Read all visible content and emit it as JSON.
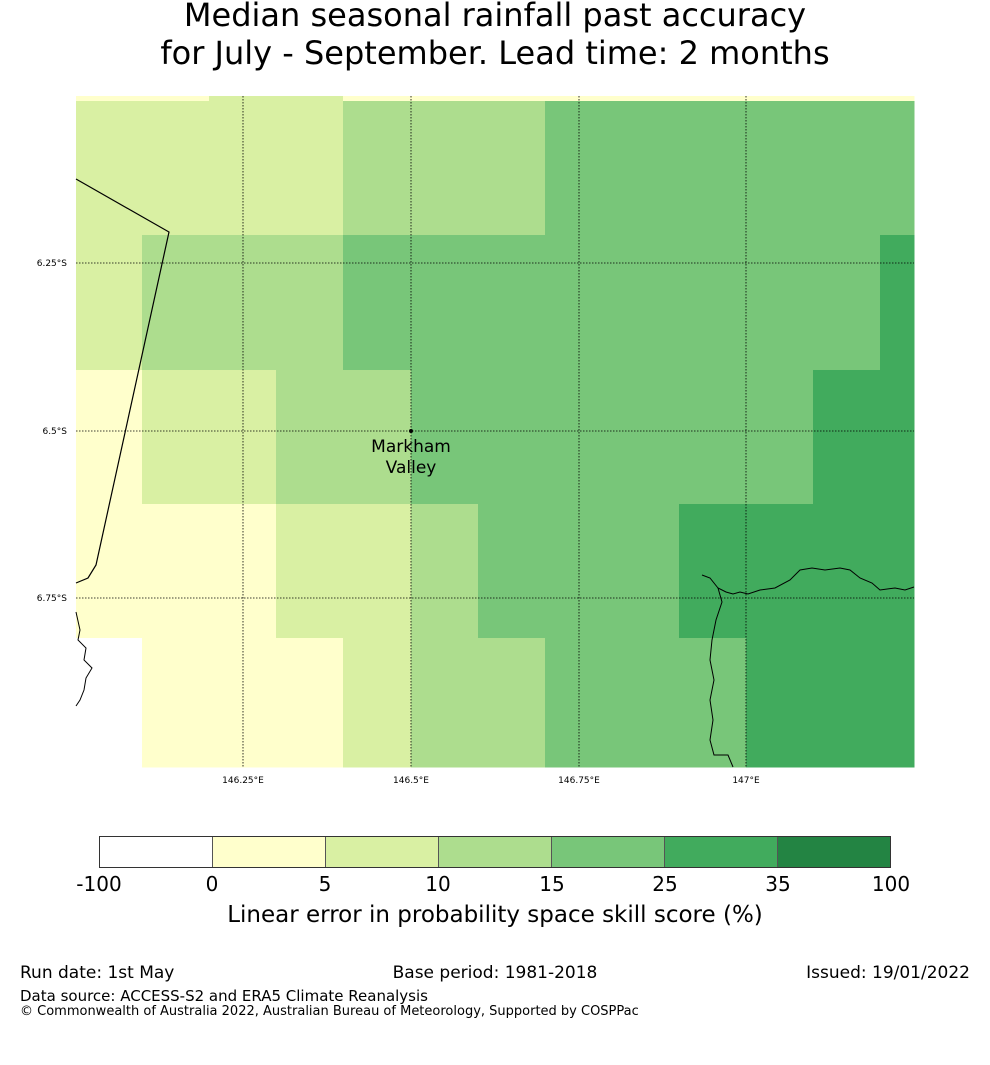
{
  "title_line1": "Median seasonal rainfall past accuracy",
  "title_line2": "for July - September. Lead time: 2 months",
  "map": {
    "latitude_labels": [
      "6.25°S",
      "6.5°S",
      "6.75°S"
    ],
    "longitude_labels": [
      "146.25°E",
      "146.5°E",
      "146.75°E",
      "147°E"
    ],
    "location": {
      "name_line1": "Markham",
      "name_line2": "Valley"
    },
    "grid": {
      "rows": [
        [
          "c1",
          "c1",
          "c1",
          "c1",
          "c1",
          "c1",
          "c1",
          "c1",
          "c1",
          "c1",
          "c1",
          "c1",
          "c1"
        ],
        [
          "c2",
          "c2",
          "c2",
          "c2",
          "c3",
          "c3",
          "c3",
          "c4",
          "c4",
          "c4",
          "c4",
          "c4",
          "c4"
        ],
        [
          "c2",
          "c3",
          "c3",
          "c3",
          "c4",
          "c4",
          "c4",
          "c4",
          "c4",
          "c4",
          "c4",
          "c4",
          "c5"
        ],
        [
          "c1",
          "c2",
          "c2",
          "c3",
          "c3",
          "c4",
          "c4",
          "c4",
          "c4",
          "c4",
          "c4",
          "c5",
          "c5"
        ],
        [
          "c1",
          "c1",
          "c1",
          "c2",
          "c2",
          "c3",
          "c4",
          "c4",
          "c4",
          "c5",
          "c5",
          "c5",
          "c5"
        ],
        [
          "c0",
          "c1",
          "c1",
          "c1",
          "c2",
          "c3",
          "c3",
          "c4",
          "c4",
          "c4",
          "c5",
          "c5",
          "c5"
        ]
      ]
    }
  },
  "colorbar": {
    "colors": [
      "#ffffff",
      "#ffffcc",
      "#d9f0a3",
      "#addd8e",
      "#78c679",
      "#41ab5d",
      "#238443"
    ],
    "ticks": [
      "-100",
      "0",
      "5",
      "10",
      "15",
      "25",
      "35",
      "100"
    ],
    "label": "Linear error in probability space skill score (%)"
  },
  "footer": {
    "run_date": "Run date: 1st May",
    "base_period": "Base period: 1981-2018",
    "issued": "Issued: 19/01/2022",
    "data_source": "Data source: ACCESS-S2 and ERA5 Climate Reanalysis",
    "copyright": "© Commonwealth of Australia 2022, Australian Bureau of Meteorology, Supported by COSPPac"
  }
}
